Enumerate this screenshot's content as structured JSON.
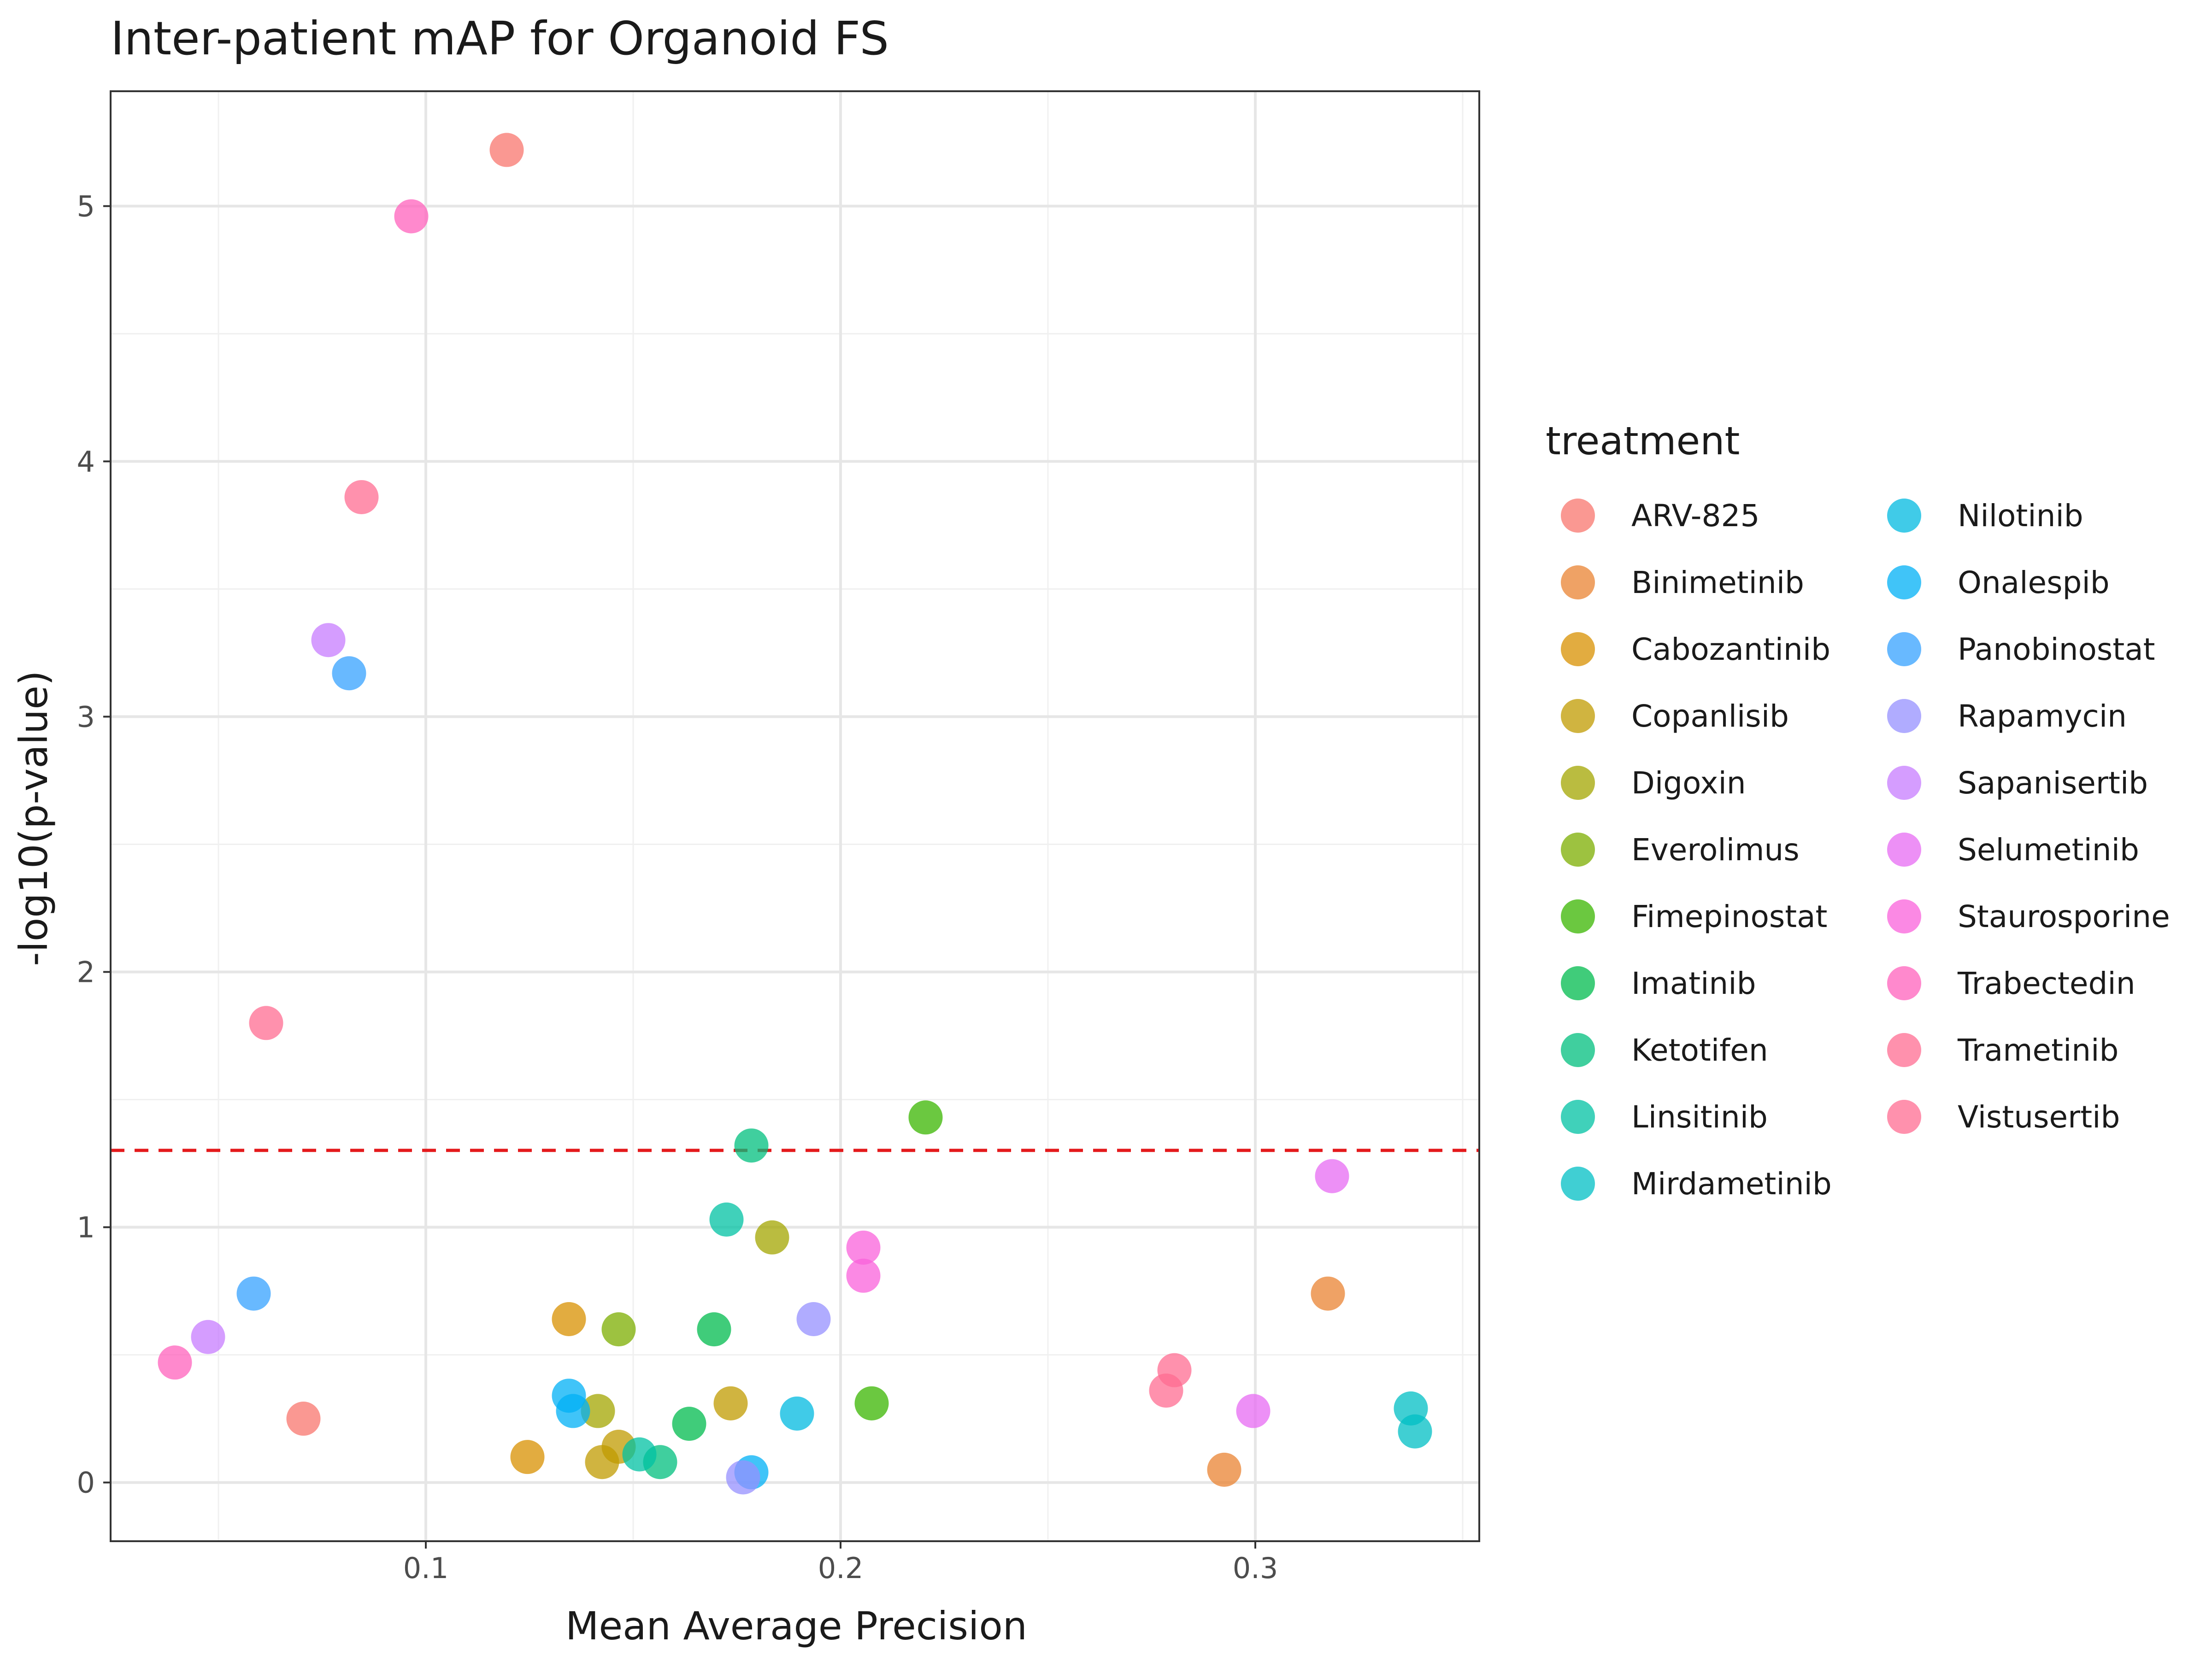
{
  "chart_data": {
    "type": "scatter",
    "title": "Inter-patient mAP for Organoid FS",
    "xlabel": "Mean Average Precision",
    "ylabel": "-log10(p-value)",
    "xlim": [
      0.024,
      0.354
    ],
    "ylim": [
      -0.23,
      5.45
    ],
    "x_ticks": [
      0.1,
      0.2,
      0.3
    ],
    "x_tick_labels": [
      "0.1",
      "0.2",
      "0.3"
    ],
    "y_ticks": [
      0,
      1,
      2,
      3,
      4,
      5
    ],
    "y_tick_labels": [
      "0",
      "1",
      "2",
      "3",
      "4",
      "5"
    ],
    "grid": true,
    "threshold_line": {
      "y": 1.301,
      "style": "dashed",
      "color": "#e41a1c"
    },
    "legend": {
      "title": "treatment",
      "placement": "right",
      "columns": 2
    },
    "series": [
      {
        "name": "ARV-825",
        "color": "#F8766D",
        "points": [
          [
            0.1195,
            5.22
          ],
          [
            0.0705,
            0.25
          ]
        ]
      },
      {
        "name": "Binimetinib",
        "color": "#EA8331",
        "points": [
          [
            0.3175,
            0.74
          ],
          [
            0.2925,
            0.05
          ]
        ]
      },
      {
        "name": "Cabozantinib",
        "color": "#D89000",
        "points": [
          [
            0.1345,
            0.64
          ],
          [
            0.1245,
            0.1
          ]
        ]
      },
      {
        "name": "Copanlisib",
        "color": "#C09B00",
        "points": [
          [
            0.1735,
            0.31
          ],
          [
            0.1425,
            0.08
          ],
          [
            0.1465,
            0.14
          ]
        ]
      },
      {
        "name": "Digoxin",
        "color": "#A3A500",
        "points": [
          [
            0.1835,
            0.96
          ],
          [
            0.1415,
            0.28
          ]
        ]
      },
      {
        "name": "Everolimus",
        "color": "#7CAE00",
        "points": [
          [
            0.1465,
            0.6
          ]
        ]
      },
      {
        "name": "Fimepinostat",
        "color": "#39B600",
        "points": [
          [
            0.2205,
            1.43
          ],
          [
            0.2075,
            0.31
          ]
        ]
      },
      {
        "name": "Imatinib",
        "color": "#00BB4E",
        "points": [
          [
            0.1695,
            0.6
          ],
          [
            0.1635,
            0.23
          ]
        ]
      },
      {
        "name": "Ketotifen",
        "color": "#00BF7D",
        "points": [
          [
            0.1785,
            1.32
          ],
          [
            0.1565,
            0.08
          ]
        ]
      },
      {
        "name": "Linsitinib",
        "color": "#00C1A3",
        "points": [
          [
            0.1725,
            1.03
          ],
          [
            0.1515,
            0.11
          ]
        ]
      },
      {
        "name": "Mirdametinib",
        "color": "#00BFC4",
        "points": [
          [
            0.3375,
            0.29
          ],
          [
            0.3385,
            0.2
          ]
        ]
      },
      {
        "name": "Nilotinib",
        "color": "#00BAE0",
        "points": [
          [
            0.1895,
            0.27
          ]
        ]
      },
      {
        "name": "Onalespib",
        "color": "#00B0F6",
        "points": [
          [
            0.1345,
            0.34
          ],
          [
            0.1355,
            0.28
          ],
          [
            0.1785,
            0.04
          ]
        ]
      },
      {
        "name": "Panobinostat",
        "color": "#35A2FF",
        "points": [
          [
            0.0815,
            3.17
          ],
          [
            0.0585,
            0.74
          ]
        ]
      },
      {
        "name": "Rapamycin",
        "color": "#9590FF",
        "points": [
          [
            0.1935,
            0.64
          ],
          [
            0.1765,
            0.02
          ]
        ]
      },
      {
        "name": "Sapanisertib",
        "color": "#C77CFF",
        "points": [
          [
            0.0765,
            3.3
          ],
          [
            0.0475,
            0.57
          ]
        ]
      },
      {
        "name": "Selumetinib",
        "color": "#E76BF3",
        "points": [
          [
            0.3185,
            1.2
          ],
          [
            0.2995,
            0.28
          ]
        ]
      },
      {
        "name": "Staurosporine",
        "color": "#FA62DB",
        "points": [
          [
            0.2055,
            0.92
          ],
          [
            0.2055,
            0.81
          ]
        ]
      },
      {
        "name": "Trabectedin",
        "color": "#FF62BC",
        "points": [
          [
            0.0965,
            4.96
          ],
          [
            0.0395,
            0.47
          ]
        ]
      },
      {
        "name": "Trametinib",
        "color": "#FF6C91",
        "points": [
          [
            0.2805,
            0.44
          ],
          [
            0.2785,
            0.36
          ]
        ]
      },
      {
        "name": "Vistusertib",
        "color": "#FF6C91",
        "points": [
          [
            0.0845,
            3.86
          ],
          [
            0.0615,
            1.8
          ]
        ]
      }
    ]
  }
}
